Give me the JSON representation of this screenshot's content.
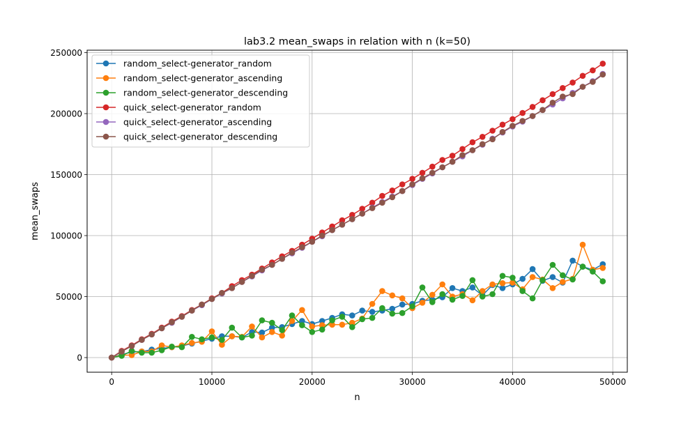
{
  "chart_data": {
    "type": "line",
    "title": "lab3.2 mean_swaps in relation with n (k=50)",
    "xlabel": "n",
    "ylabel": "mean_swaps",
    "xlim": [
      -2450,
      51450
    ],
    "ylim": [
      -12000,
      252000
    ],
    "xticks": [
      0,
      10000,
      20000,
      30000,
      40000,
      50000
    ],
    "xtick_labels": [
      "0",
      "10000",
      "20000",
      "30000",
      "40000",
      "50000"
    ],
    "yticks": [
      0,
      50000,
      100000,
      150000,
      200000,
      250000
    ],
    "ytick_labels": [
      "0",
      "50000",
      "100000",
      "150000",
      "200000",
      "250000"
    ],
    "grid": true,
    "legend_position": "upper-left",
    "x": [
      0,
      1000,
      2000,
      3000,
      4000,
      5000,
      6000,
      7000,
      8000,
      9000,
      10000,
      11000,
      12000,
      13000,
      14000,
      15000,
      16000,
      17000,
      18000,
      19000,
      20000,
      21000,
      22000,
      23000,
      24000,
      25000,
      26000,
      27000,
      28000,
      29000,
      30000,
      31000,
      32000,
      33000,
      34000,
      35000,
      36000,
      37000,
      38000,
      39000,
      40000,
      41000,
      42000,
      43000,
      44000,
      45000,
      46000,
      47000,
      48000,
      49000
    ],
    "series": [
      {
        "name": "random_select-generator_random",
        "color": "#1f77b4",
        "values": [
          0,
          2500,
          4500,
          5000,
          6500,
          7500,
          8500,
          9500,
          11500,
          13500,
          15500,
          17500,
          17500,
          16500,
          21000,
          20500,
          24500,
          25000,
          27500,
          30000,
          27500,
          30000,
          32500,
          35500,
          34500,
          38500,
          37500,
          38500,
          40000,
          43500,
          44000,
          46500,
          47500,
          49500,
          57000,
          54500,
          57500,
          51000,
          59500,
          57000,
          60000,
          64500,
          72500,
          63000,
          66000,
          61500,
          79500,
          74500,
          72000,
          76500
        ]
      },
      {
        "name": "random_select-generator_ascending",
        "color": "#ff7f0e",
        "values": [
          0,
          2000,
          2000,
          5000,
          5000,
          10000,
          8500,
          10000,
          12000,
          13000,
          21500,
          10500,
          17500,
          17000,
          25500,
          16500,
          21000,
          18000,
          30000,
          39000,
          25500,
          26500,
          27000,
          27000,
          28500,
          32000,
          44000,
          54500,
          51000,
          48500,
          40500,
          45000,
          51500,
          60000,
          50000,
          52000,
          47000,
          54500,
          60000,
          61000,
          61500,
          56000,
          66000,
          64000,
          57000,
          62000,
          64500,
          92500,
          72000,
          73500
        ]
      },
      {
        "name": "random_select-generator_descending",
        "color": "#2ca02c",
        "values": [
          0,
          1500,
          5500,
          4000,
          4000,
          6000,
          9000,
          8500,
          17000,
          15000,
          16500,
          14500,
          24500,
          16500,
          18000,
          30500,
          28500,
          22500,
          34500,
          26500,
          21000,
          23000,
          30500,
          33500,
          25000,
          31500,
          32500,
          40500,
          36000,
          36500,
          42000,
          57500,
          45500,
          52000,
          47500,
          50500,
          63500,
          50000,
          52000,
          67000,
          65500,
          54500,
          48500,
          63500,
          76000,
          67500,
          64000,
          74500,
          70500,
          62500
        ]
      },
      {
        "name": "quick_select-generator_random",
        "color": "#d62728",
        "values": [
          0,
          5500,
          10000,
          15000,
          19500,
          24500,
          29500,
          34000,
          39000,
          43500,
          48500,
          53000,
          58500,
          63500,
          68000,
          73000,
          78000,
          83000,
          87500,
          92500,
          97500,
          102500,
          107500,
          112500,
          117000,
          122000,
          127000,
          132500,
          137000,
          142000,
          146500,
          151500,
          156500,
          162000,
          165500,
          171000,
          176500,
          181000,
          186000,
          191000,
          195500,
          200500,
          205500,
          211000,
          216000,
          221000,
          225500,
          231000,
          235500,
          241000
        ]
      },
      {
        "name": "quick_select-generator_ascending",
        "color": "#9467bd",
        "values": [
          0,
          5000,
          9500,
          14500,
          19000,
          24000,
          28500,
          33500,
          38500,
          43000,
          48000,
          52500,
          57000,
          62000,
          66500,
          71500,
          76000,
          81000,
          85500,
          90000,
          95000,
          99500,
          104500,
          109000,
          113500,
          118000,
          123000,
          127500,
          132000,
          136500,
          141500,
          146500,
          151000,
          156000,
          160500,
          165000,
          170000,
          174500,
          179500,
          184500,
          189500,
          193500,
          198000,
          203000,
          207500,
          212500,
          217000,
          222000,
          226500,
          232500
        ]
      },
      {
        "name": "quick_select-generator_descending",
        "color": "#8c564b",
        "values": [
          0,
          5000,
          9500,
          14500,
          19000,
          24000,
          29000,
          33500,
          38500,
          43500,
          48000,
          53000,
          57000,
          62000,
          67000,
          72000,
          76000,
          81000,
          86000,
          90500,
          95000,
          100000,
          104500,
          109000,
          113500,
          118000,
          122500,
          127000,
          131500,
          136500,
          142000,
          147000,
          151500,
          156000,
          160500,
          166000,
          170000,
          175000,
          179000,
          185000,
          190000,
          194000,
          198000,
          203000,
          209000,
          214000,
          216000,
          222000,
          226000,
          232000
        ]
      }
    ]
  }
}
